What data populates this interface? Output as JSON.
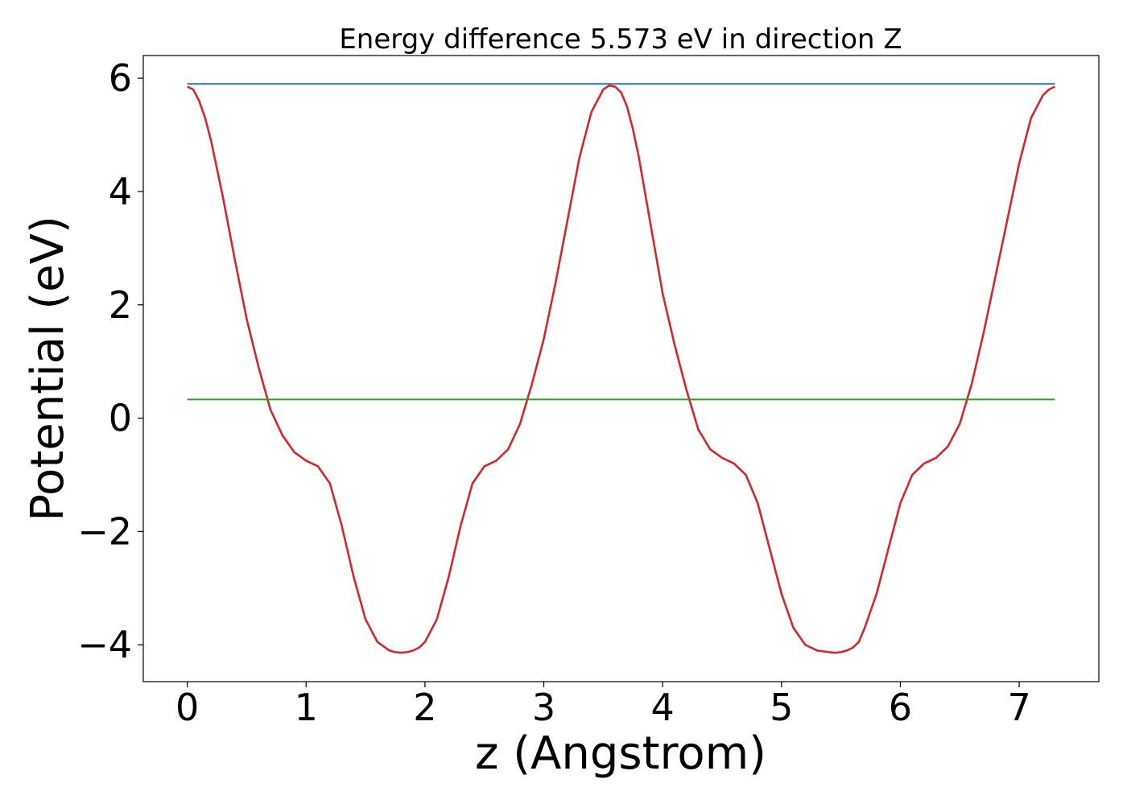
{
  "chart_data": {
    "type": "line",
    "title": "Energy difference 5.573 eV in direction Z",
    "xlabel": "z (Angstrom)",
    "ylabel": "Potential (eV)",
    "xlim": [
      -0.37,
      7.67
    ],
    "ylim": [
      -4.65,
      6.4
    ],
    "x_ticks": [
      0,
      1,
      2,
      3,
      4,
      5,
      6,
      7
    ],
    "x_tick_labels": [
      "0",
      "1",
      "2",
      "3",
      "4",
      "5",
      "6",
      "7"
    ],
    "y_ticks": [
      -4,
      -2,
      0,
      2,
      4,
      6
    ],
    "y_tick_labels": [
      "−4",
      "−2",
      "0",
      "2",
      "4",
      "6"
    ],
    "grid": false,
    "legend": "none",
    "series": [
      {
        "color": "#d62728",
        "x": [
          0.0,
          0.05,
          0.1,
          0.15,
          0.2,
          0.3,
          0.4,
          0.5,
          0.6,
          0.7,
          0.8,
          0.9,
          1.0,
          1.1,
          1.2,
          1.3,
          1.4,
          1.5,
          1.6,
          1.7,
          1.75,
          1.8,
          1.85,
          1.9,
          1.95,
          2.0,
          2.1,
          2.2,
          2.3,
          2.4,
          2.5,
          2.6,
          2.7,
          2.8,
          2.9,
          3.0,
          3.1,
          3.2,
          3.3,
          3.4,
          3.5,
          3.55,
          3.6,
          3.65,
          3.7,
          3.75,
          3.8,
          3.9,
          4.0,
          4.1,
          4.2,
          4.3,
          4.4,
          4.5,
          4.6,
          4.7,
          4.8,
          4.9,
          5.0,
          5.1,
          5.2,
          5.3,
          5.4,
          5.45,
          5.5,
          5.55,
          5.6,
          5.65,
          5.7,
          5.8,
          5.9,
          6.0,
          6.1,
          6.2,
          6.3,
          6.4,
          6.5,
          6.6,
          6.7,
          6.8,
          6.9,
          7.0,
          7.1,
          7.2,
          7.25,
          7.3
        ],
        "y": [
          5.85,
          5.8,
          5.6,
          5.3,
          4.9,
          3.9,
          2.8,
          1.75,
          0.9,
          0.15,
          -0.3,
          -0.6,
          -0.75,
          -0.85,
          -1.15,
          -1.9,
          -2.8,
          -3.55,
          -3.95,
          -4.1,
          -4.13,
          -4.14,
          -4.13,
          -4.1,
          -4.05,
          -3.95,
          -3.55,
          -2.8,
          -1.9,
          -1.15,
          -0.85,
          -0.75,
          -0.55,
          -0.1,
          0.6,
          1.4,
          2.4,
          3.5,
          4.6,
          5.4,
          5.8,
          5.87,
          5.85,
          5.75,
          5.5,
          5.1,
          4.6,
          3.4,
          2.2,
          1.3,
          0.5,
          -0.2,
          -0.55,
          -0.7,
          -0.8,
          -1.0,
          -1.5,
          -2.3,
          -3.1,
          -3.7,
          -4.0,
          -4.1,
          -4.13,
          -4.14,
          -4.13,
          -4.1,
          -4.05,
          -3.95,
          -3.7,
          -3.1,
          -2.3,
          -1.5,
          -1.0,
          -0.8,
          -0.7,
          -0.5,
          -0.1,
          0.6,
          1.5,
          2.5,
          3.5,
          4.5,
          5.3,
          5.7,
          5.8,
          5.85
        ]
      },
      {
        "color": "#1f77b4",
        "x": [
          0.0,
          7.3
        ],
        "y": [
          5.9,
          5.9
        ]
      },
      {
        "color": "#2ca02c",
        "x": [
          0.0,
          7.3
        ],
        "y": [
          0.33,
          0.33
        ]
      }
    ]
  }
}
